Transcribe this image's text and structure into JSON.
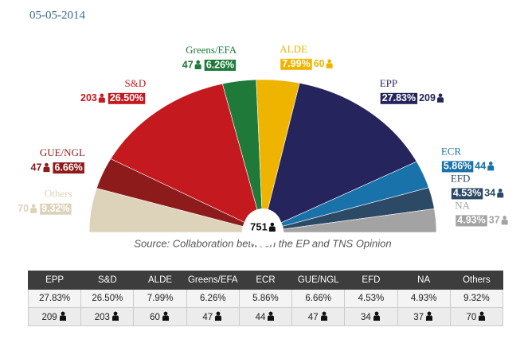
{
  "date": "05-05-2014",
  "chart_data": {
    "type": "semicircle",
    "categories": [
      "Others",
      "GUE/NGL",
      "S&D",
      "Greens/EFA",
      "ALDE",
      "EPP",
      "ECR",
      "EFD",
      "NA"
    ],
    "values": [
      9.32,
      6.66,
      26.5,
      6.26,
      7.99,
      27.83,
      5.86,
      4.53,
      4.93
    ],
    "value_labels": [
      "9.32%",
      "6.66%",
      "26.50%",
      "6.26%",
      "7.99%",
      "27.83%",
      "5.86%",
      "4.53%",
      "4.93%"
    ],
    "seats": [
      70,
      47,
      203,
      47,
      60,
      209,
      44,
      34,
      37
    ],
    "colors": [
      "#ddd3bb",
      "#8e1b1b",
      "#c41a1f",
      "#1f7a3a",
      "#eeb400",
      "#25245c",
      "#1a72ab",
      "#2c4a66",
      "#a3a3a3"
    ],
    "total_seats": 751,
    "source": "Source: Collaboration between the EP and TNS Opinion"
  },
  "table": {
    "header": [
      "EPP",
      "S&D",
      "ALDE",
      "Greens/EFA",
      "ECR",
      "GUE/NGL",
      "EFD",
      "NA",
      "Others"
    ],
    "rows": [
      [
        "27.83%",
        "26.50%",
        "7.99%",
        "6.26%",
        "5.86%",
        "6.66%",
        "4.53%",
        "4.93%",
        "9.32%"
      ],
      [
        209,
        203,
        60,
        47,
        44,
        47,
        34,
        37,
        70
      ]
    ]
  }
}
